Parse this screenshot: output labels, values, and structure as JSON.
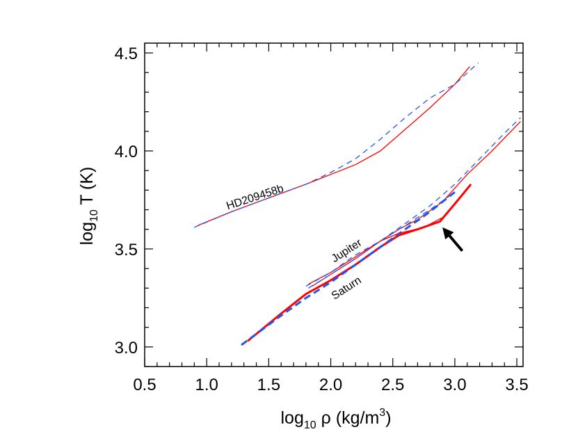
{
  "chart_data": {
    "type": "line",
    "xlabel": {
      "prefix": "log",
      "sub": "10",
      "main": " ρ (kg/m",
      "sup": "3",
      "suffix": ")"
    },
    "ylabel": {
      "prefix": "log",
      "sub": "10",
      "main": " T (K)"
    },
    "xlim": [
      0.5,
      3.55
    ],
    "ylim": [
      2.9,
      4.55
    ],
    "x_ticks": [
      0.5,
      1.0,
      1.5,
      2.0,
      2.5,
      3.0,
      3.5
    ],
    "x_tick_labels": [
      "0.5",
      "1.0",
      "1.5",
      "2.0",
      "2.5",
      "3.0",
      "3.5"
    ],
    "y_ticks": [
      3.0,
      3.5,
      4.0,
      4.5
    ],
    "y_tick_labels": [
      "3.0",
      "3.5",
      "4.0",
      "4.5"
    ],
    "grid": false,
    "series": [
      {
        "name": "HD209458b solid",
        "color": "#ff0000",
        "style": "solid",
        "width": 1.3,
        "x": [
          0.93,
          1.2,
          1.5,
          1.8,
          2.0,
          2.2,
          2.4,
          2.6,
          2.8,
          3.0,
          3.12
        ],
        "y": [
          3.62,
          3.69,
          3.76,
          3.83,
          3.88,
          3.93,
          4.0,
          4.11,
          4.22,
          4.34,
          4.43
        ]
      },
      {
        "name": "HD209458b dashed",
        "color": "#2255ee",
        "style": "dashed",
        "width": 1.3,
        "x": [
          0.9,
          1.2,
          1.5,
          1.8,
          2.0,
          2.2,
          2.4,
          2.6,
          2.8,
          3.0,
          3.19
        ],
        "y": [
          3.61,
          3.69,
          3.76,
          3.83,
          3.89,
          3.96,
          4.06,
          4.17,
          4.27,
          4.34,
          4.45
        ]
      },
      {
        "name": "Jupiter solid",
        "color": "#ff0000",
        "style": "solid",
        "width": 1.3,
        "x": [
          1.82,
          2.0,
          2.2,
          2.4,
          2.55,
          2.7,
          2.9,
          3.1,
          3.3,
          3.53
        ],
        "y": [
          3.32,
          3.38,
          3.46,
          3.54,
          3.6,
          3.65,
          3.74,
          3.88,
          4.0,
          4.15
        ]
      },
      {
        "name": "Jupiter dashed",
        "color": "#2255ee",
        "style": "dashed",
        "width": 1.3,
        "x": [
          1.8,
          2.0,
          2.2,
          2.4,
          2.6,
          2.8,
          3.0,
          3.2,
          3.4,
          3.53
        ],
        "y": [
          3.31,
          3.38,
          3.47,
          3.54,
          3.63,
          3.72,
          3.83,
          3.96,
          4.09,
          4.17
        ]
      },
      {
        "name": "Saturn solid",
        "color": "#ff0000",
        "style": "solid",
        "width": 3,
        "x": [
          1.33,
          1.6,
          1.8,
          2.0,
          2.2,
          2.4,
          2.55,
          2.7,
          2.88,
          3.0,
          3.13
        ],
        "y": [
          3.03,
          3.17,
          3.27,
          3.34,
          3.42,
          3.51,
          3.57,
          3.6,
          3.64,
          3.73,
          3.83
        ]
      },
      {
        "name": "Saturn dashed",
        "color": "#2255ee",
        "style": "dashed",
        "width": 3,
        "x": [
          1.28,
          1.6,
          1.8,
          2.0,
          2.2,
          2.4,
          2.6,
          2.8,
          3.0
        ],
        "y": [
          3.01,
          3.16,
          3.25,
          3.33,
          3.42,
          3.51,
          3.6,
          3.69,
          3.79
        ]
      },
      {
        "name": "Saturn inner solid",
        "color": "#ff0000",
        "style": "solid",
        "width": 1.3,
        "x": [
          1.85,
          2.0,
          2.2,
          2.4,
          2.55,
          2.75,
          2.9
        ],
        "y": [
          3.31,
          3.37,
          3.45,
          3.54,
          3.58,
          3.61,
          3.66
        ]
      },
      {
        "name": "Saturn inner dashed",
        "color": "#2255ee",
        "style": "dashed",
        "width": 1.3,
        "x": [
          1.82,
          2.0,
          2.2,
          2.4,
          2.6,
          2.8,
          2.98
        ],
        "y": [
          3.3,
          3.37,
          3.45,
          3.54,
          3.62,
          3.7,
          3.78
        ]
      }
    ],
    "annotations": [
      {
        "text": "HD209458b",
        "x": 1.17,
        "y": 3.7,
        "angle": -18
      },
      {
        "text": "Jupiter",
        "x": 2.03,
        "y": 3.43,
        "angle": -33
      },
      {
        "text": "Saturn",
        "x": 2.03,
        "y": 3.24,
        "angle": -33
      }
    ],
    "arrow": {
      "from": [
        3.06,
        3.49
      ],
      "to": [
        2.9,
        3.61
      ],
      "color": "#000000"
    }
  }
}
